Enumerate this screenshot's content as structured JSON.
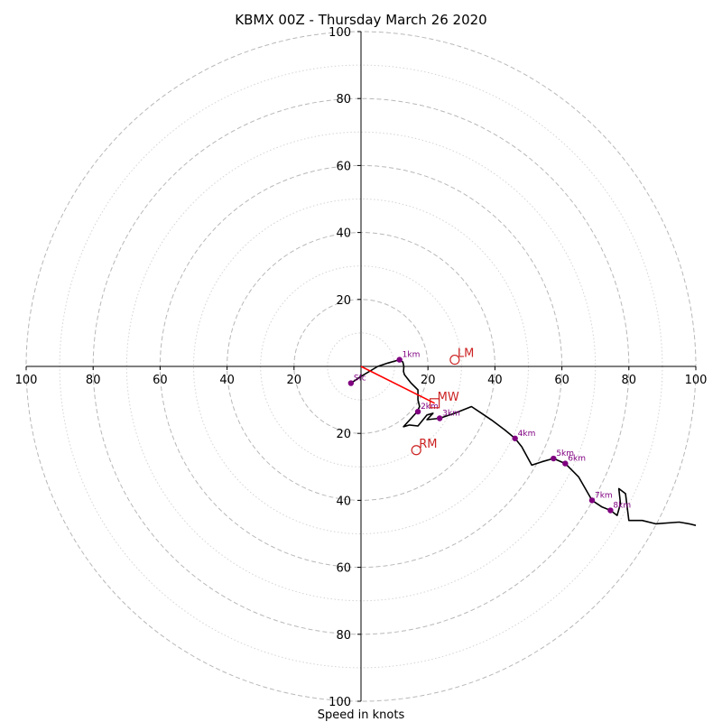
{
  "chart_data": {
    "type": "scatter",
    "title": "KBMX 00Z - Thursday March 26 2020",
    "xlabel": "Speed in knots",
    "ylabel": "",
    "xlim": [
      -100,
      100
    ],
    "ylim": [
      -100,
      100
    ],
    "grid": true,
    "ring_speeds_major": [
      20,
      40,
      60,
      80,
      100
    ],
    "ring_speeds_minor": [
      10,
      30,
      50,
      70,
      90
    ],
    "tick_values": [
      20,
      40,
      60,
      80,
      100
    ],
    "hodograph_trace": [
      [
        -3,
        -5
      ],
      [
        0,
        -3
      ],
      [
        5,
        0
      ],
      [
        8,
        1
      ],
      [
        11.5,
        2
      ],
      [
        12.5,
        1.3
      ],
      [
        12.8,
        0
      ],
      [
        12.7,
        -1.5
      ],
      [
        13,
        -2.5
      ],
      [
        15,
        -5
      ],
      [
        17,
        -7
      ],
      [
        17,
        -10
      ],
      [
        17.5,
        -12
      ],
      [
        16.8,
        -13.5
      ],
      [
        15,
        -15.5
      ],
      [
        12.7,
        -18
      ],
      [
        14.5,
        -17.5
      ],
      [
        17,
        -17.8
      ],
      [
        19.7,
        -14.5
      ],
      [
        21.5,
        -14
      ],
      [
        19.7,
        -15.9
      ],
      [
        23.5,
        -15.5
      ],
      [
        28,
        -14
      ],
      [
        33,
        -12
      ],
      [
        36,
        -14
      ],
      [
        39,
        -16
      ],
      [
        43,
        -19
      ],
      [
        46,
        -21.5
      ],
      [
        48,
        -24
      ],
      [
        51,
        -29.5
      ],
      [
        54,
        -28.5
      ],
      [
        57.5,
        -27.5
      ],
      [
        61,
        -29
      ],
      [
        65,
        -33
      ],
      [
        69,
        -40
      ],
      [
        72,
        -42
      ],
      [
        74.5,
        -43
      ],
      [
        76.5,
        -44.5
      ],
      [
        77.5,
        -41
      ],
      [
        77,
        -36.5
      ],
      [
        79,
        -38
      ],
      [
        80,
        -46
      ],
      [
        84,
        -46
      ],
      [
        88,
        -47
      ],
      [
        95,
        -46.5
      ],
      [
        98,
        -47
      ],
      [
        100,
        -47.5
      ]
    ],
    "height_points": [
      {
        "label": "Sfc",
        "u": -3,
        "v": -5
      },
      {
        "label": "1km",
        "u": 11.5,
        "v": 2
      },
      {
        "label": "2km",
        "u": 17,
        "v": -13.5
      },
      {
        "label": "3km",
        "u": 23.5,
        "v": -15.5
      },
      {
        "label": "4km",
        "u": 46,
        "v": -21.5
      },
      {
        "label": "5km",
        "u": 57.5,
        "v": -27.5
      },
      {
        "label": "6km",
        "u": 61,
        "v": -29
      },
      {
        "label": "7km",
        "u": 69,
        "v": -40
      },
      {
        "label": "8km",
        "u": 74.5,
        "v": -43
      }
    ],
    "storm_motions": [
      {
        "label": "LM",
        "u": 28,
        "v": 2,
        "marker": "circle"
      },
      {
        "label": "MW",
        "u": 22,
        "v": -11,
        "marker": "square"
      },
      {
        "label": "RM",
        "u": 16.5,
        "v": -25,
        "marker": "circle"
      }
    ],
    "shear_vector": {
      "from": [
        0,
        0
      ],
      "to": [
        22,
        -11
      ]
    }
  },
  "colors": {
    "trace": "#000000",
    "height_points": "#800080",
    "storm_motion": "#cc2222",
    "shear_vector": "#ff0000",
    "major_ring": "#b8b8b8",
    "minor_ring": "#d4d4d4",
    "axis": "#000000"
  }
}
